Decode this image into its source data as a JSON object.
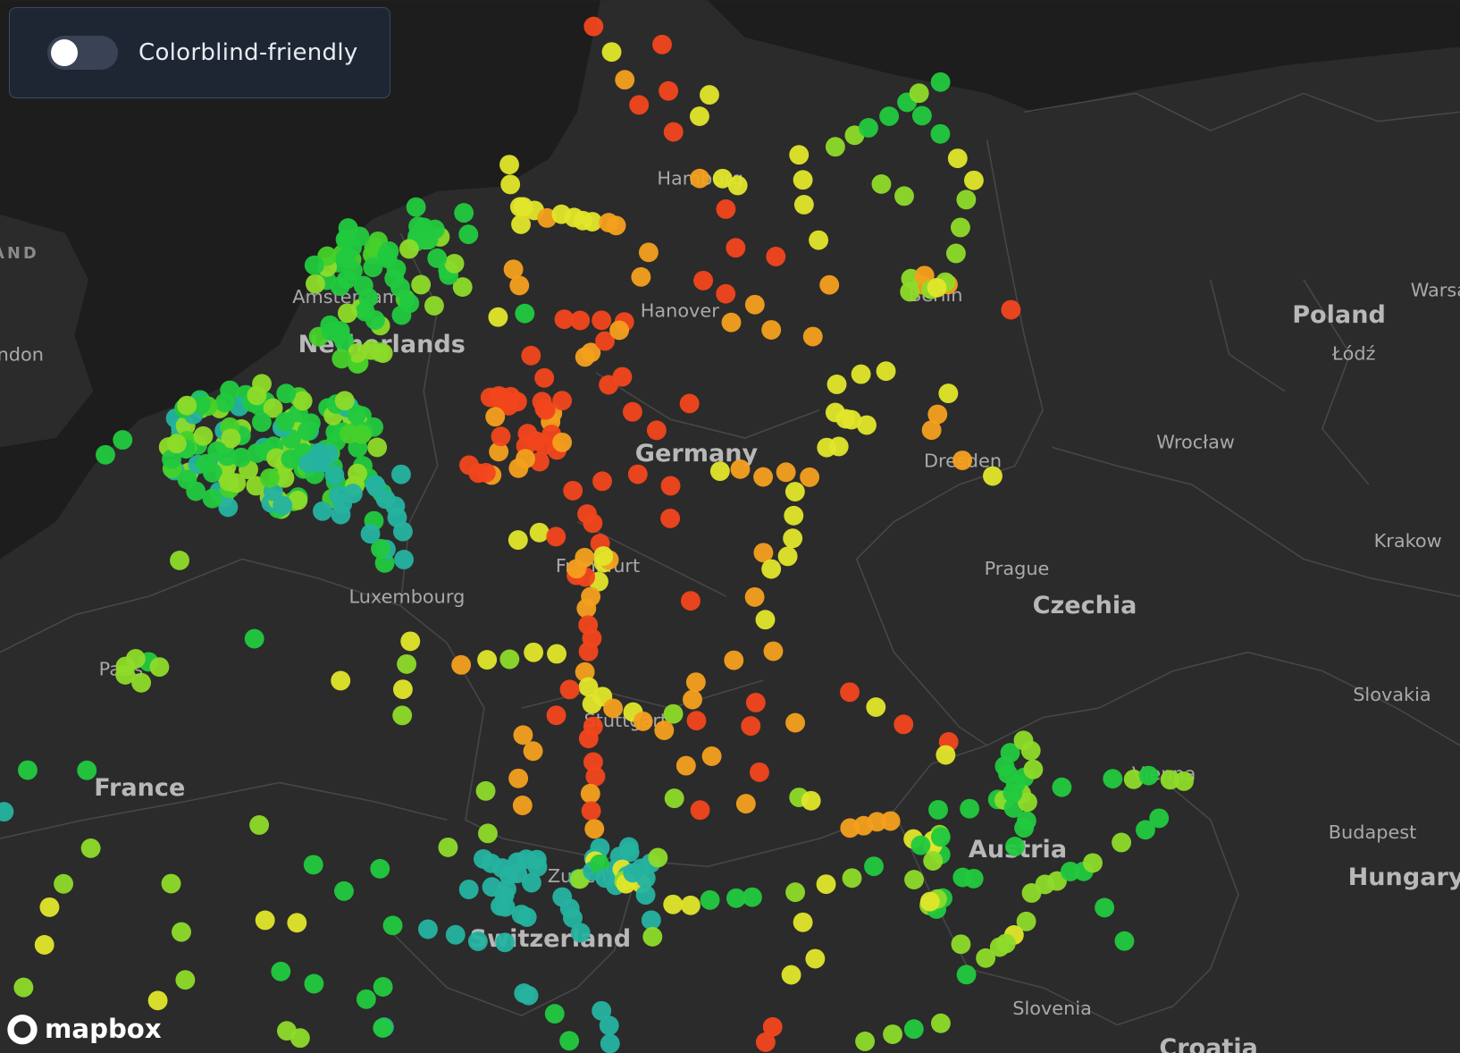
{
  "toggle": {
    "label": "Colorblind-friendly",
    "checked": false
  },
  "map": {
    "labels": [
      "Hamburg",
      "Hanover",
      "Berlin",
      "Netherlands",
      "Amsterdam",
      "Germany",
      "Dresden",
      "Frankfurt",
      "Stuttgart",
      "Zurich",
      "Switzerland",
      "Luxembourg",
      "Paris",
      "France",
      "Poland",
      "Łódź",
      "Warsaw",
      "Wrocław",
      "Krakow",
      "Prague",
      "Czechia",
      "Slovakia",
      "Budapest",
      "Hungary",
      "Austria",
      "Vienna",
      "Slovenia",
      "Croatia",
      "London",
      "ENGLAND"
    ]
  },
  "attribution": "mapbox"
}
